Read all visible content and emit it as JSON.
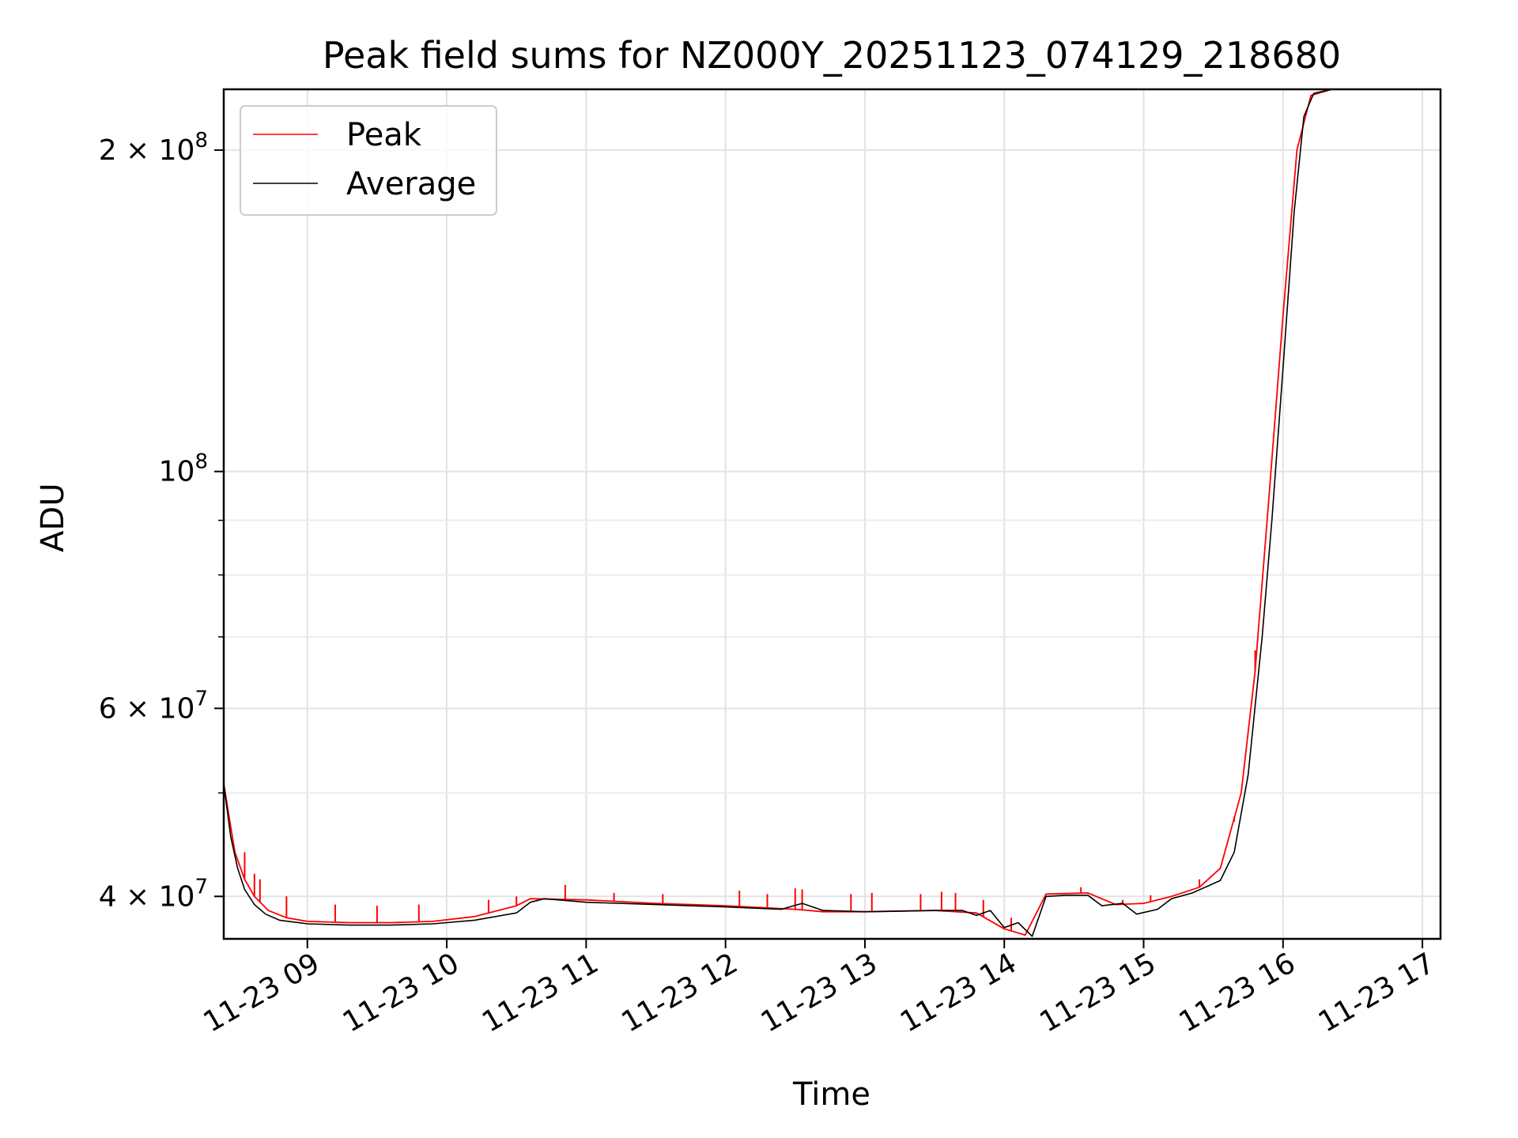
{
  "chart_data": {
    "type": "line",
    "title": "Peak field sums for NZ000Y_20251123_074129_218680",
    "xlabel": "Time",
    "ylabel": "ADU",
    "y_scale": "log",
    "ylim": [
      36500000,
      228000000
    ],
    "x_unit": "hours (date 2025-11-23)",
    "xlim_hours": [
      8.4,
      17.13
    ],
    "x_ticks": [
      "11-23 09",
      "11-23 10",
      "11-23 11",
      "11-23 12",
      "11-23 13",
      "11-23 14",
      "11-23 15",
      "11-23 16",
      "11-23 17"
    ],
    "x_tick_hours": [
      9,
      10,
      11,
      12,
      13,
      14,
      15,
      16,
      17
    ],
    "y_major_ticks": [
      {
        "value": 40000000,
        "mantissa": "4",
        "exponent": "7"
      },
      {
        "value": 60000000,
        "mantissa": "6",
        "exponent": "7"
      },
      {
        "value": 100000000,
        "mantissa": "",
        "exponent": "8"
      },
      {
        "value": 200000000,
        "mantissa": "2",
        "exponent": "8"
      }
    ],
    "y_minor_ticks": [
      50000000,
      70000000,
      80000000,
      90000000
    ],
    "grid": true,
    "legend_position": "top-left",
    "series": [
      {
        "name": "Peak",
        "color": "#ff0000",
        "points": [
          [
            8.4,
            51000000
          ],
          [
            8.48,
            44000000
          ],
          [
            8.55,
            41500000
          ],
          [
            8.62,
            40000000
          ],
          [
            8.72,
            38800000
          ],
          [
            8.85,
            38200000
          ],
          [
            9.0,
            37900000
          ],
          [
            9.3,
            37800000
          ],
          [
            9.6,
            37800000
          ],
          [
            9.9,
            37900000
          ],
          [
            10.2,
            38300000
          ],
          [
            10.5,
            39200000
          ],
          [
            10.6,
            39800000
          ],
          [
            11.0,
            39700000
          ],
          [
            11.5,
            39400000
          ],
          [
            12.0,
            39200000
          ],
          [
            12.5,
            38900000
          ],
          [
            12.7,
            38700000
          ],
          [
            13.0,
            38700000
          ],
          [
            13.5,
            38800000
          ],
          [
            13.8,
            38600000
          ],
          [
            14.0,
            37300000
          ],
          [
            14.15,
            36800000
          ],
          [
            14.3,
            40200000
          ],
          [
            14.6,
            40300000
          ],
          [
            14.8,
            39300000
          ],
          [
            15.0,
            39400000
          ],
          [
            15.2,
            40000000
          ],
          [
            15.4,
            40800000
          ],
          [
            15.55,
            42500000
          ],
          [
            15.7,
            50000000
          ],
          [
            15.8,
            65000000
          ],
          [
            15.9,
            95000000
          ],
          [
            16.0,
            140000000
          ],
          [
            16.1,
            200000000
          ],
          [
            16.2,
            225000000
          ],
          [
            16.35,
            228000000
          ]
        ],
        "spikes": [
          [
            8.55,
            44000000
          ],
          [
            8.62,
            42000000
          ],
          [
            8.66,
            41500000
          ],
          [
            8.85,
            40000000
          ],
          [
            9.2,
            39300000
          ],
          [
            9.5,
            39200000
          ],
          [
            9.8,
            39300000
          ],
          [
            10.3,
            39700000
          ],
          [
            10.5,
            40000000
          ],
          [
            10.85,
            41000000
          ],
          [
            11.2,
            40300000
          ],
          [
            11.55,
            40200000
          ],
          [
            12.1,
            40500000
          ],
          [
            12.3,
            40200000
          ],
          [
            12.5,
            40700000
          ],
          [
            12.55,
            40600000
          ],
          [
            12.9,
            40200000
          ],
          [
            13.05,
            40300000
          ],
          [
            13.4,
            40200000
          ],
          [
            13.55,
            40400000
          ],
          [
            13.65,
            40300000
          ],
          [
            13.85,
            39700000
          ],
          [
            14.05,
            38200000
          ],
          [
            14.55,
            40800000
          ],
          [
            14.85,
            39700000
          ],
          [
            15.05,
            40100000
          ],
          [
            15.4,
            41500000
          ],
          [
            15.6,
            45000000
          ],
          [
            15.65,
            47000000
          ],
          [
            15.8,
            68000000
          ]
        ]
      },
      {
        "name": "Average",
        "color": "#000000",
        "points": [
          [
            8.4,
            51000000
          ],
          [
            8.45,
            45500000
          ],
          [
            8.5,
            42500000
          ],
          [
            8.55,
            40600000
          ],
          [
            8.62,
            39300000
          ],
          [
            8.7,
            38500000
          ],
          [
            8.8,
            38000000
          ],
          [
            9.0,
            37700000
          ],
          [
            9.3,
            37600000
          ],
          [
            9.6,
            37600000
          ],
          [
            9.9,
            37700000
          ],
          [
            10.2,
            38000000
          ],
          [
            10.5,
            38600000
          ],
          [
            10.6,
            39500000
          ],
          [
            10.7,
            39800000
          ],
          [
            11.0,
            39500000
          ],
          [
            11.5,
            39300000
          ],
          [
            12.0,
            39100000
          ],
          [
            12.4,
            38900000
          ],
          [
            12.55,
            39400000
          ],
          [
            12.7,
            38800000
          ],
          [
            13.0,
            38700000
          ],
          [
            13.5,
            38800000
          ],
          [
            13.7,
            38800000
          ],
          [
            13.8,
            38400000
          ],
          [
            13.9,
            38800000
          ],
          [
            14.0,
            37400000
          ],
          [
            14.1,
            37800000
          ],
          [
            14.2,
            36700000
          ],
          [
            14.3,
            40000000
          ],
          [
            14.45,
            40100000
          ],
          [
            14.6,
            40100000
          ],
          [
            14.7,
            39200000
          ],
          [
            14.85,
            39400000
          ],
          [
            14.95,
            38500000
          ],
          [
            15.1,
            38900000
          ],
          [
            15.2,
            39800000
          ],
          [
            15.35,
            40300000
          ],
          [
            15.55,
            41400000
          ],
          [
            15.65,
            44000000
          ],
          [
            15.75,
            52000000
          ],
          [
            15.85,
            70000000
          ],
          [
            15.92,
            90000000
          ],
          [
            16.0,
            125000000
          ],
          [
            16.08,
            175000000
          ],
          [
            16.15,
            215000000
          ],
          [
            16.22,
            226000000
          ],
          [
            16.35,
            228000000
          ]
        ]
      }
    ]
  }
}
